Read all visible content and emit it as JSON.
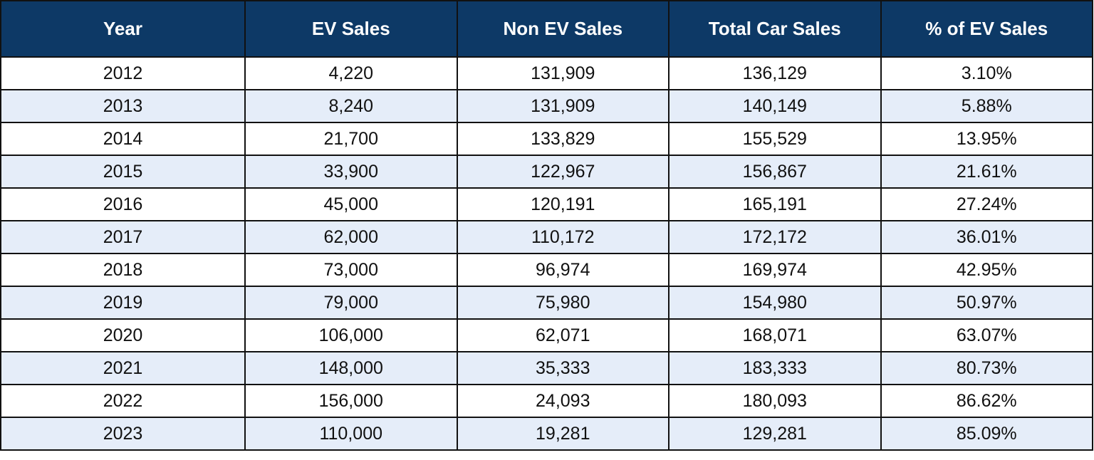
{
  "table": {
    "headers": [
      "Year",
      "EV Sales",
      "Non EV Sales",
      "Total Car Sales",
      "% of EV Sales"
    ],
    "rows": [
      [
        "2012",
        "4,220",
        "131,909",
        "136,129",
        "3.10%"
      ],
      [
        "2013",
        "8,240",
        "131,909",
        "140,149",
        "5.88%"
      ],
      [
        "2014",
        "21,700",
        "133,829",
        "155,529",
        "13.95%"
      ],
      [
        "2015",
        "33,900",
        "122,967",
        "156,867",
        "21.61%"
      ],
      [
        "2016",
        "45,000",
        "120,191",
        "165,191",
        "27.24%"
      ],
      [
        "2017",
        "62,000",
        "110,172",
        "172,172",
        "36.01%"
      ],
      [
        "2018",
        "73,000",
        "96,974",
        "169,974",
        "42.95%"
      ],
      [
        "2019",
        "79,000",
        "75,980",
        "154,980",
        "50.97%"
      ],
      [
        "2020",
        "106,000",
        "62,071",
        "168,071",
        "63.07%"
      ],
      [
        "2021",
        "148,000",
        "35,333",
        "183,333",
        "80.73%"
      ],
      [
        "2022",
        "156,000",
        "24,093",
        "180,093",
        "86.62%"
      ],
      [
        "2023",
        "110,000",
        "19,281",
        "129,281",
        "85.09%"
      ]
    ]
  }
}
